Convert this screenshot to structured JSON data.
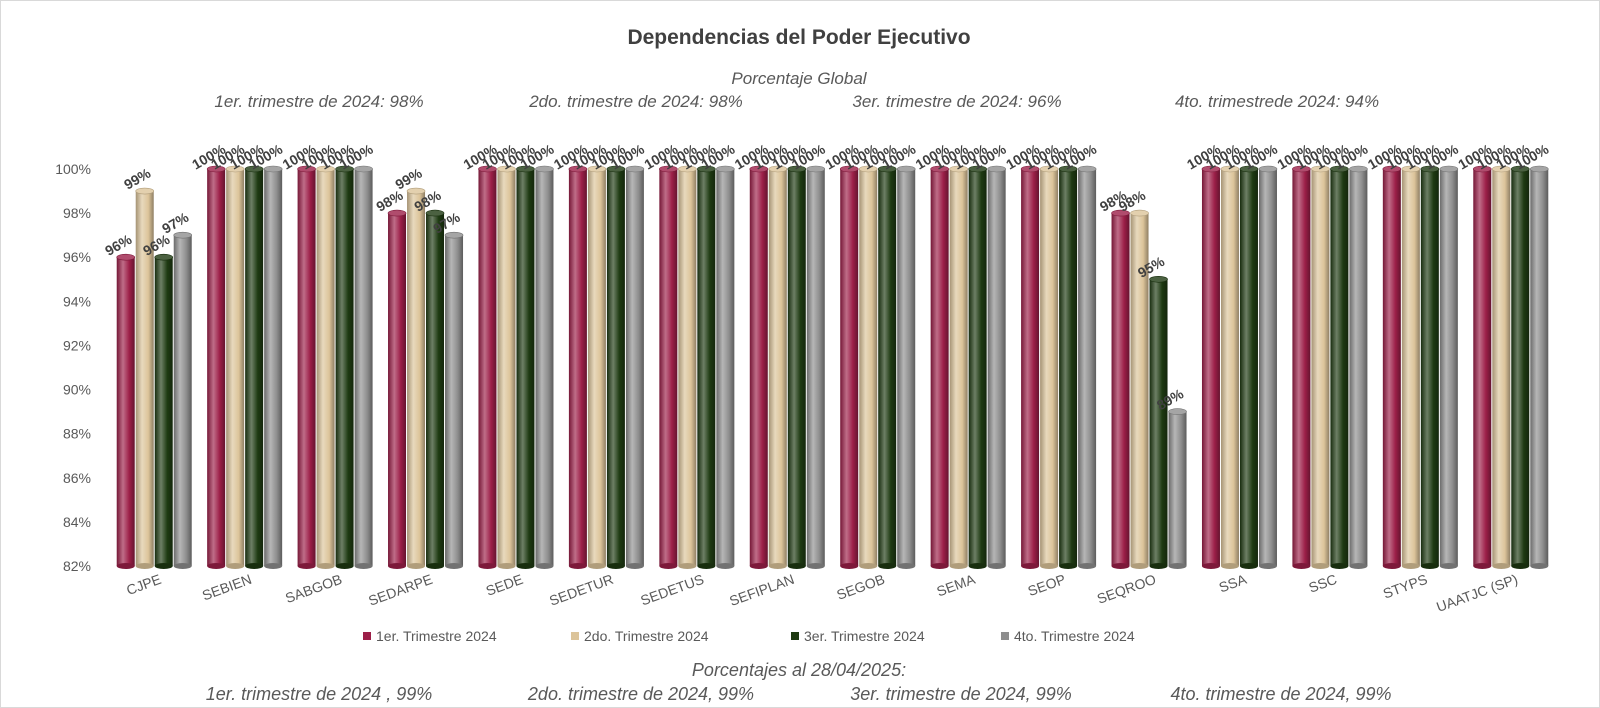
{
  "chart_data": {
    "type": "bar",
    "title": "Dependencias del Poder Ejecutivo",
    "subtitle": "Porcentaje Global",
    "top_annotations": [
      "1er. trimestre de 2024: 98%",
      "2do. trimestre de 2024: 98%",
      "3er. trimestre de 2024: 96%",
      "4to. trimestrede 2024:  94%"
    ],
    "bottom_heading": "Porcentajes al 28/04/2025:",
    "bottom_annotations": [
      "1er. trimestre de 2024 , 99%",
      "2do. trimestre de 2024, 99%",
      "3er. trimestre de 2024, 99%",
      "4to. trimestre de 2024, 99%"
    ],
    "categories": [
      "CJPE",
      "SEBIEN",
      "SABGOB",
      "SEDARPE",
      "SEDE",
      "SEDETUR",
      "SEDETUS",
      "SEFIPLAN",
      "SEGOB",
      "SEMA",
      "SEOP",
      "SEQROO",
      "SSA",
      "SSC",
      "STYPS",
      "UAATJC (SP)"
    ],
    "series": [
      {
        "name": "1er. Trimestre 2024",
        "color": "#9c1f48",
        "values": [
          96,
          100,
          100,
          98,
          100,
          100,
          100,
          100,
          100,
          100,
          100,
          98,
          100,
          100,
          100,
          100
        ]
      },
      {
        "name": "2do. Trimestre 2024",
        "color": "#dcc49a",
        "values": [
          99,
          100,
          100,
          99,
          100,
          100,
          100,
          100,
          100,
          100,
          100,
          98,
          100,
          100,
          100,
          100
        ]
      },
      {
        "name": "3er. Trimestre 2024",
        "color": "#1e3a12",
        "values": [
          96,
          100,
          100,
          98,
          100,
          100,
          100,
          100,
          100,
          100,
          100,
          95,
          100,
          100,
          100,
          100
        ]
      },
      {
        "name": "4to. Trimestre 2024",
        "color": "#8e8e8e",
        "values": [
          97,
          100,
          100,
          97,
          100,
          100,
          100,
          100,
          100,
          100,
          100,
          89,
          100,
          100,
          100,
          100
        ]
      }
    ],
    "data_labels": [
      [
        "96%",
        "100%",
        "100%",
        "98%",
        "100%",
        "100%",
        "100%",
        "100%",
        "100%",
        "100%",
        "100%",
        "98%",
        "100%",
        "100%",
        "100%",
        "100%"
      ],
      [
        "99%",
        "100%",
        "100%",
        "99%",
        "100%",
        "100%",
        "100%",
        "100%",
        "100%",
        "100%",
        "100%",
        "98%",
        "100%",
        "100%",
        "100%",
        "100%"
      ],
      [
        "96%",
        "100%",
        "100%",
        "98%",
        "100%",
        "100%",
        "100%",
        "100%",
        "100%",
        "100%",
        "100%",
        "95%",
        "100%",
        "100%",
        "100%",
        "100%"
      ],
      [
        "97%",
        "100%",
        "100%",
        "97%",
        "100%",
        "100%",
        "100%",
        "100%",
        "100%",
        "100%",
        "100%",
        "89%",
        "100%",
        "100%",
        "100%",
        "100%"
      ]
    ],
    "ylim": [
      82,
      100
    ],
    "yticks": [
      82,
      84,
      86,
      88,
      90,
      92,
      94,
      96,
      98,
      100
    ],
    "ytick_labels": [
      "82%",
      "84%",
      "86%",
      "88%",
      "90%",
      "92%",
      "94%",
      "96%",
      "98%",
      "100%"
    ],
    "xlabel": "",
    "ylabel": "",
    "grid": false,
    "legend_position": "bottom"
  }
}
